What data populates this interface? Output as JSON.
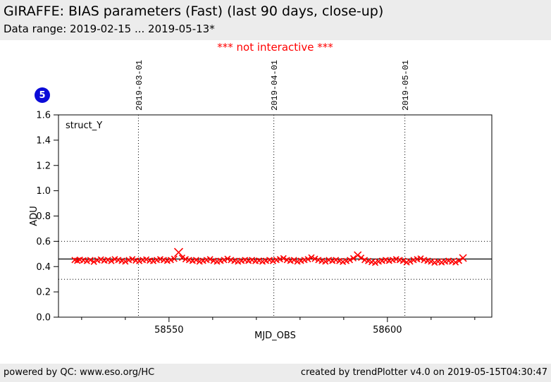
{
  "header": {
    "title": "GIRAFFE: BIAS parameters (Fast) (last 90 days, close-up)",
    "subtitle": "Data range: 2019-02-15 ... 2019-05-13*",
    "background": "#ececec"
  },
  "notice": {
    "text": "*** not interactive ***",
    "color": "#ff0000"
  },
  "badge": {
    "label": "5",
    "background": "#0b0bd8",
    "text_color": "#ffffff"
  },
  "footer": {
    "left": "powered by QC: www.eso.org/HC",
    "right": "created by trendPlotter v4.0 on 2019-05-15T04:30:47"
  },
  "chart_data": {
    "type": "scatter",
    "series_label": "struct_Y",
    "xlabel": "MJD_OBS",
    "ylabel": "ADU",
    "xlim": [
      58524.7,
      58623.9
    ],
    "ylim": [
      0.0,
      1.6
    ],
    "marker": "x",
    "marker_color": "#ff0000",
    "center_line": 0.46,
    "dotted_hlines": [
      0.3,
      0.6
    ],
    "month_gridlines": [
      {
        "value": 58543,
        "label": "2019-03-01"
      },
      {
        "value": 58574,
        "label": "2019-04-01"
      },
      {
        "value": 58604,
        "label": "2019-05-01"
      }
    ],
    "xticks_major": [
      {
        "value": 58550,
        "label": "58550"
      },
      {
        "value": 58600,
        "label": "58600"
      }
    ],
    "xticks_minor": [
      58530,
      58540,
      58560,
      58570,
      58580,
      58590,
      58610,
      58620
    ],
    "yticks": [
      {
        "value": 0.0,
        "label": "0.0"
      },
      {
        "value": 0.2,
        "label": "0.2"
      },
      {
        "value": 0.4,
        "label": "0.4"
      },
      {
        "value": 0.6,
        "label": "0.6"
      },
      {
        "value": 0.8,
        "label": "0.8"
      },
      {
        "value": 1.0,
        "label": "1.0"
      },
      {
        "value": 1.2,
        "label": "1.2"
      },
      {
        "value": 1.4,
        "label": "1.4"
      },
      {
        "value": 1.6,
        "label": "1.6"
      }
    ],
    "points": [
      [
        58528.4,
        0.452
      ],
      [
        58529.0,
        0.446
      ],
      [
        58529.6,
        0.454
      ],
      [
        58530.4,
        0.45
      ],
      [
        58531.2,
        0.444
      ],
      [
        58532.0,
        0.452
      ],
      [
        58532.8,
        0.438
      ],
      [
        58533.6,
        0.45
      ],
      [
        58534.4,
        0.456
      ],
      [
        58535.2,
        0.448
      ],
      [
        58536.0,
        0.452
      ],
      [
        58536.8,
        0.444
      ],
      [
        58537.6,
        0.458
      ],
      [
        58538.4,
        0.452
      ],
      [
        58539.2,
        0.446
      ],
      [
        58540.0,
        0.44
      ],
      [
        58540.8,
        0.452
      ],
      [
        58541.6,
        0.458
      ],
      [
        58542.4,
        0.448
      ],
      [
        58543.2,
        0.444
      ],
      [
        58544.0,
        0.452
      ],
      [
        58544.8,
        0.456
      ],
      [
        58545.6,
        0.448
      ],
      [
        58546.4,
        0.444
      ],
      [
        58547.2,
        0.452
      ],
      [
        58548.0,
        0.458
      ],
      [
        58548.8,
        0.452
      ],
      [
        58549.6,
        0.446
      ],
      [
        58550.4,
        0.452
      ],
      [
        58551.2,
        0.462
      ],
      [
        58552.2,
        0.512,
        6
      ],
      [
        58553.0,
        0.47
      ],
      [
        58553.8,
        0.458
      ],
      [
        58554.6,
        0.452
      ],
      [
        58555.4,
        0.446
      ],
      [
        58556.2,
        0.452
      ],
      [
        58557.0,
        0.44
      ],
      [
        58557.8,
        0.446
      ],
      [
        58558.6,
        0.452
      ],
      [
        58559.4,
        0.458
      ],
      [
        58560.2,
        0.446
      ],
      [
        58561.0,
        0.44
      ],
      [
        58561.8,
        0.446
      ],
      [
        58562.6,
        0.452
      ],
      [
        58563.4,
        0.462
      ],
      [
        58564.2,
        0.452
      ],
      [
        58565.0,
        0.446
      ],
      [
        58565.8,
        0.44
      ],
      [
        58566.6,
        0.446
      ],
      [
        58567.4,
        0.452
      ],
      [
        58568.2,
        0.446
      ],
      [
        58569.0,
        0.452
      ],
      [
        58569.8,
        0.444
      ],
      [
        58570.6,
        0.448
      ],
      [
        58571.4,
        0.44
      ],
      [
        58572.2,
        0.446
      ],
      [
        58573.0,
        0.452
      ],
      [
        58573.8,
        0.444
      ],
      [
        58574.6,
        0.452
      ],
      [
        58575.4,
        0.458
      ],
      [
        58576.2,
        0.466
      ],
      [
        58577.0,
        0.452
      ],
      [
        58577.8,
        0.446
      ],
      [
        58578.6,
        0.452
      ],
      [
        58579.4,
        0.44
      ],
      [
        58580.2,
        0.446
      ],
      [
        58581.0,
        0.452
      ],
      [
        58581.8,
        0.458
      ],
      [
        58582.6,
        0.472
      ],
      [
        58583.4,
        0.462
      ],
      [
        58584.2,
        0.452
      ],
      [
        58585.0,
        0.446
      ],
      [
        58585.8,
        0.44
      ],
      [
        58586.6,
        0.452
      ],
      [
        58587.4,
        0.446
      ],
      [
        58588.2,
        0.452
      ],
      [
        58589.0,
        0.444
      ],
      [
        58589.8,
        0.438
      ],
      [
        58590.6,
        0.444
      ],
      [
        58591.4,
        0.452
      ],
      [
        58592.2,
        0.466
      ],
      [
        58593.2,
        0.49,
        5
      ],
      [
        58594.0,
        0.47
      ],
      [
        58594.8,
        0.452
      ],
      [
        58595.6,
        0.444
      ],
      [
        58596.4,
        0.436
      ],
      [
        58597.2,
        0.43
      ],
      [
        58598.0,
        0.44
      ],
      [
        58598.8,
        0.446
      ],
      [
        58599.6,
        0.452
      ],
      [
        58600.4,
        0.446
      ],
      [
        58601.2,
        0.452
      ],
      [
        58602.0,
        0.458
      ],
      [
        58602.8,
        0.452
      ],
      [
        58603.6,
        0.446
      ],
      [
        58604.4,
        0.434
      ],
      [
        58605.2,
        0.44
      ],
      [
        58606.0,
        0.452
      ],
      [
        58606.8,
        0.458
      ],
      [
        58607.6,
        0.464
      ],
      [
        58608.4,
        0.452
      ],
      [
        58609.2,
        0.446
      ],
      [
        58610.0,
        0.44
      ],
      [
        58610.8,
        0.432
      ],
      [
        58611.6,
        0.44
      ],
      [
        58612.4,
        0.434
      ],
      [
        58613.2,
        0.44
      ],
      [
        58614.0,
        0.446
      ],
      [
        58614.8,
        0.44
      ],
      [
        58615.6,
        0.434
      ],
      [
        58616.4,
        0.446
      ],
      [
        58617.3,
        0.468,
        5
      ]
    ]
  }
}
